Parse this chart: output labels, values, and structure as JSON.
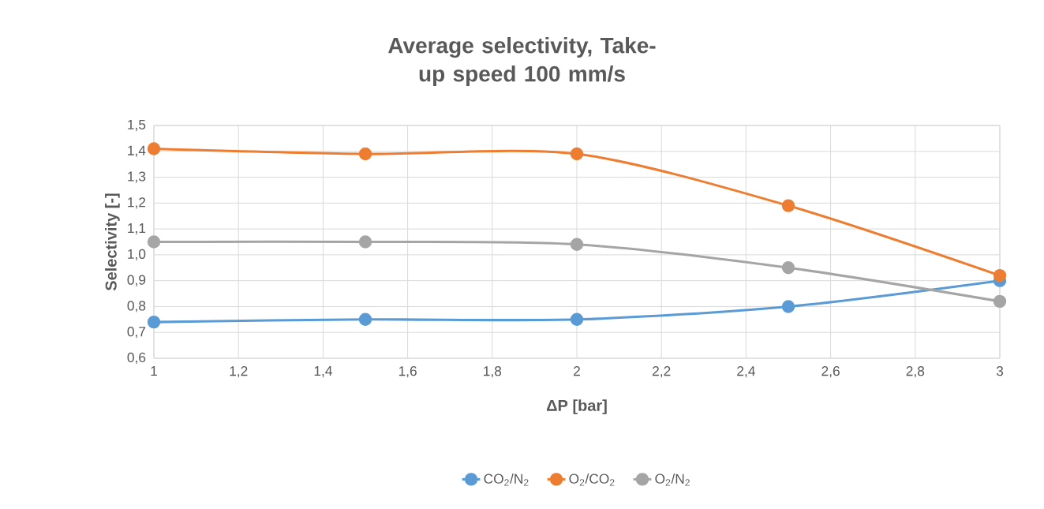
{
  "chart_data": {
    "type": "line",
    "title": "Average selectivity, Take-up speed 100 mm/s",
    "xlabel": "ΔP [bar]",
    "ylabel": "Selectivity [-]",
    "x": [
      1,
      1.5,
      2,
      2.5,
      3
    ],
    "series": [
      {
        "name": "CO$_{2}$/N$_{2}$",
        "color": "#5b9bd5",
        "values": [
          0.74,
          0.75,
          0.75,
          0.8,
          0.9
        ]
      },
      {
        "name": "O$_{2}$/CO$_{2}$",
        "color": "#ed7d31",
        "values": [
          1.41,
          1.39,
          1.39,
          1.19,
          0.92
        ]
      },
      {
        "name": "O$_{2}$/N$_{2}$",
        "color": "#a5a5a5",
        "values": [
          1.05,
          1.05,
          1.04,
          0.95,
          0.82
        ]
      }
    ],
    "xlim": [
      1,
      3
    ],
    "xticks": [
      1,
      {
        "value": 1.2,
        "label": "1,2"
      },
      {
        "value": 1.4,
        "label": "1,4"
      },
      {
        "value": 1.6,
        "label": "1,6"
      },
      {
        "value": 1.8,
        "label": "1,8"
      },
      2,
      {
        "value": 2.2,
        "label": "2,2"
      },
      {
        "value": 2.4,
        "label": "2,4"
      },
      {
        "value": 2.6,
        "label": "2,6"
      },
      {
        "value": 2.8,
        "label": "2,8"
      },
      3
    ],
    "ylim": [
      0.6,
      1.5
    ],
    "yticks": [
      {
        "value": 0.6,
        "label": "0,6"
      },
      {
        "value": 0.7,
        "label": "0,7"
      },
      {
        "value": 0.8,
        "label": "0,8"
      },
      {
        "value": 0.9,
        "label": "0,9"
      },
      {
        "value": 1.0,
        "label": "1,0"
      },
      {
        "value": 1.1,
        "label": "1,1"
      },
      {
        "value": 1.2,
        "label": "1,2"
      },
      {
        "value": 1.3,
        "label": "1,3"
      },
      {
        "value": 1.4,
        "label": "1,4"
      },
      {
        "value": 1.5,
        "label": "1,5"
      }
    ],
    "grid": true,
    "legend": "bottom",
    "marker": "circle",
    "line_style": "solid"
  }
}
